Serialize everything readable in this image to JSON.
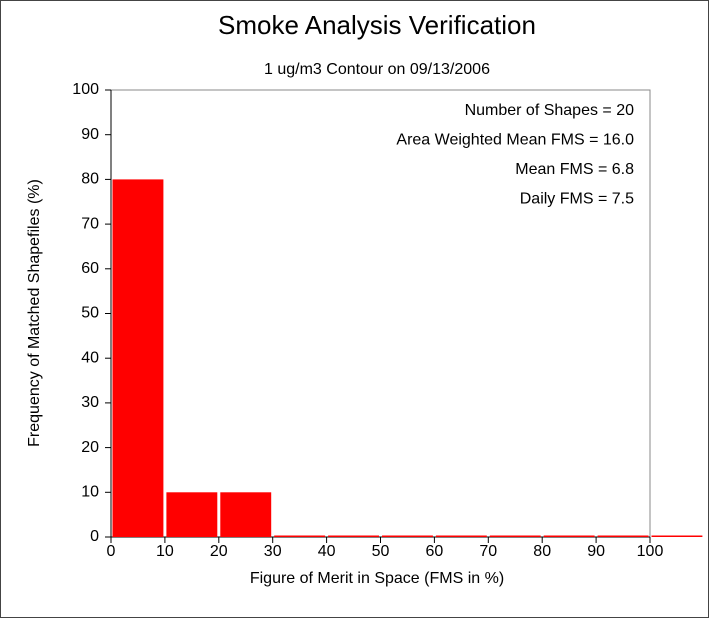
{
  "chart_data": {
    "type": "histogram",
    "title": "Smoke Analysis Verification",
    "subtitle": "1 ug/m3 Contour on 09/13/2006",
    "x_label": "Figure of Merit in Space (FMS in %)",
    "y_label": "Frequency of Matched Shapefiles (%)",
    "bins": [
      0,
      10,
      20,
      30,
      40,
      50,
      60,
      70,
      80,
      90,
      100,
      110
    ],
    "values": [
      80,
      10,
      10,
      0,
      0,
      0,
      0,
      0,
      0,
      0,
      0
    ],
    "color": "#ff0000",
    "xlim": [
      0,
      100
    ],
    "ylim": [
      0,
      100
    ],
    "xticks": [
      0,
      10,
      20,
      30,
      40,
      50,
      60,
      70,
      80,
      90,
      100
    ],
    "yticks": [
      0,
      10,
      20,
      30,
      40,
      50,
      60,
      70,
      80,
      90,
      100
    ],
    "annotations": [
      "Number of Shapes = 20",
      "Area Weighted Mean FMS = 16.0",
      "Mean FMS = 6.8",
      "Daily FMS = 7.5"
    ]
  }
}
